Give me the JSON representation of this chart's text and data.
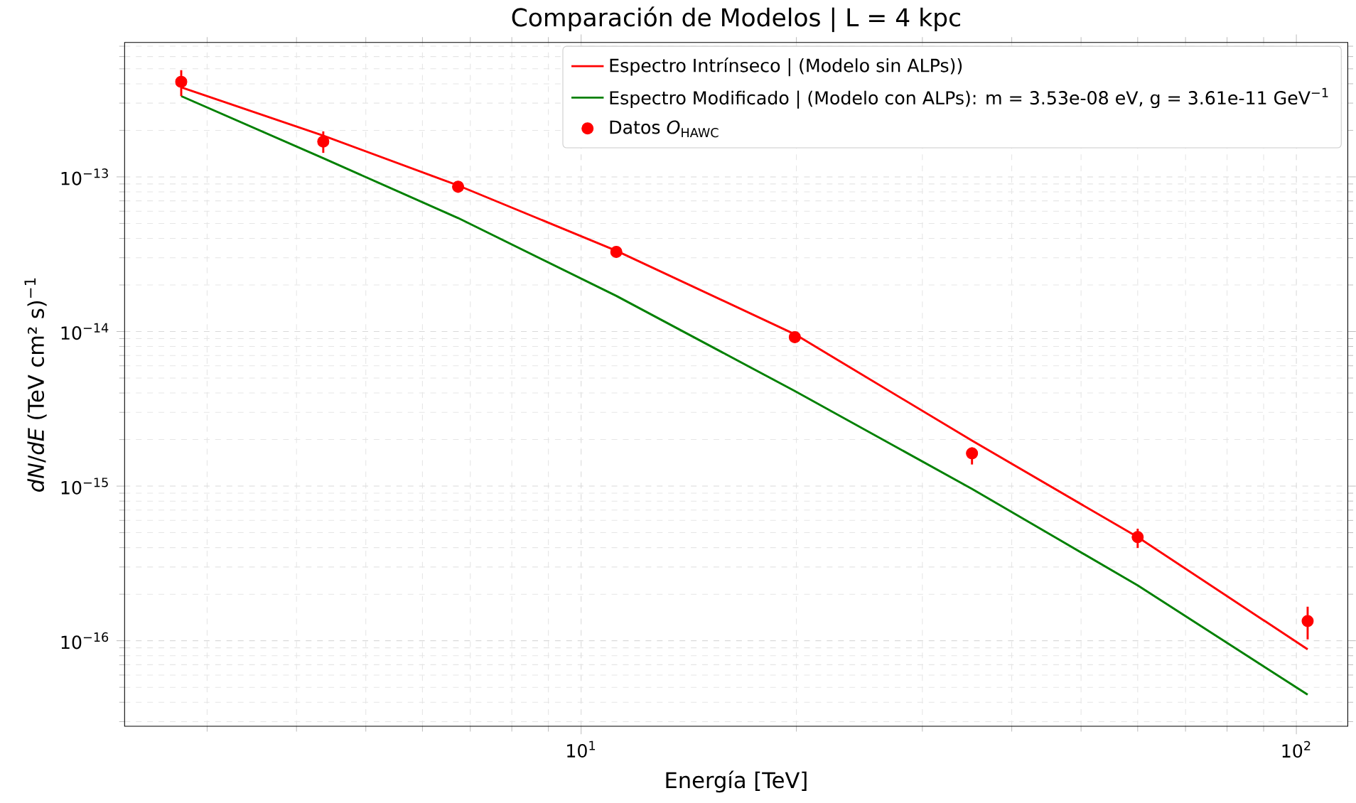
{
  "chart_data": {
    "type": "line",
    "title": "Comparación de Modelos | L = 4 kpc",
    "xlabel": "Energía [TeV]",
    "ylabel": "*dN*/*dE* (TeV cm² s)$^{−1}$",
    "log": "xy",
    "grid": true,
    "legend": "top right",
    "xlim": [
      2.3,
      118
    ],
    "ylim": [
      2.8e-17,
      7.4e-13
    ],
    "xticks": [
      {
        "value": 10,
        "label": "10$^{1}$"
      },
      {
        "value": 100,
        "label": "10$^{2}$"
      }
    ],
    "yticks": [
      {
        "value": 1e-16,
        "label": "10$^{−16}$"
      },
      {
        "value": 1e-15,
        "label": "10$^{−15}$"
      },
      {
        "value": 1e-14,
        "label": "10$^{−14}$"
      },
      {
        "value": 1e-13,
        "label": "10$^{−13}$"
      }
    ],
    "series": [
      {
        "name": "Espectro Intrínseco | (Modelo sin ALPs))",
        "color": "#ff0000",
        "x": [
          2.76,
          4.36,
          6.73,
          11.2,
          19.9,
          35.2,
          60.0,
          103.7
        ],
        "values": [
          3.8e-13,
          1.85e-13,
          8.8e-14,
          3.33e-14,
          9.6e-15,
          1.97e-15,
          4.68e-16,
          8.8e-17
        ]
      },
      {
        "name": "Espectro Modificado | (Modelo con ALPs): m = 3.53e-08 eV,  g = 3.61e-11 GeV$^{−1}$",
        "color": "#008000",
        "x": [
          2.76,
          4.36,
          6.73,
          11.2,
          19.9,
          35.2,
          60.0,
          103.7
        ],
        "values": [
          3.33e-13,
          1.32e-13,
          5.42e-14,
          1.7e-14,
          4.12e-15,
          9.6e-16,
          2.28e-16,
          4.48e-17
        ]
      },
      {
        "name": "Datos *O*$_{HAWC}$",
        "type": "scatter",
        "color": "#ff0000",
        "x": [
          2.76,
          4.36,
          6.73,
          11.2,
          19.9,
          35.2,
          60.0,
          103.7
        ],
        "values": [
          4.12e-13,
          1.69e-13,
          8.63e-14,
          3.27e-14,
          9.2e-15,
          1.63e-15,
          4.68e-16,
          1.34e-16
        ],
        "errors": [
          [
            3.33e-13,
            4.9e-13
          ],
          [
            1.43e-13,
            1.97e-13
          ],
          [
            7.9e-14,
            9.2e-14
          ],
          [
            3.06e-14,
            3.46e-14
          ],
          [
            8.6e-15,
            9.8e-15
          ],
          [
            1.38e-15,
            1.78e-15
          ],
          [
            3.98e-16,
            5.3e-16
          ],
          [
            1.02e-16,
            1.66e-16
          ]
        ]
      }
    ]
  }
}
